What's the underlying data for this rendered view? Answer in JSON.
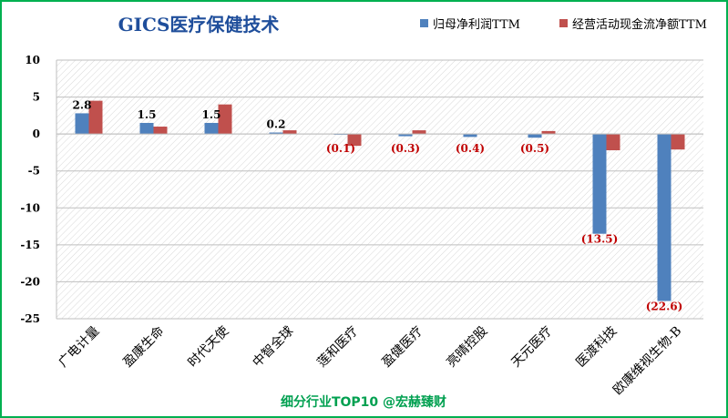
{
  "chart_data": {
    "type": "bar",
    "title": "GICS医疗保健技术",
    "categories": [
      "广电计量",
      "盈康生命",
      "时代天使",
      "中智全球",
      "莲和医疗",
      "盈健医疗",
      "亮晴控股",
      "天元医疗",
      "医渡科技",
      "欧康维视生物-B"
    ],
    "series": [
      {
        "name": "归母净利润TTM",
        "color": "#4F81BD",
        "values": [
          2.8,
          1.5,
          1.5,
          0.2,
          -0.1,
          -0.3,
          -0.4,
          -0.5,
          -13.5,
          -22.6
        ]
      },
      {
        "name": "经营活动现金流净额TTM",
        "color": "#C0504D",
        "values": [
          4.5,
          1.0,
          4.0,
          0.5,
          -1.6,
          0.5,
          0.0,
          0.4,
          -2.2,
          -2.1
        ]
      }
    ],
    "data_labels": [
      "2.8",
      "1.5",
      "1.5",
      "0.2",
      "(0.1)",
      "(0.3)",
      "(0.4)",
      "(0.5)",
      "(13.5)",
      "(22.6)"
    ],
    "ylim": [
      -25,
      10
    ],
    "yticks": [
      10,
      5,
      0,
      -5,
      -10,
      -15,
      -20,
      -25
    ],
    "grid": true,
    "legend_position": "top-right",
    "xlabel": "",
    "ylabel": ""
  },
  "footer": "细分行业TOP10 @宏赫臻财"
}
